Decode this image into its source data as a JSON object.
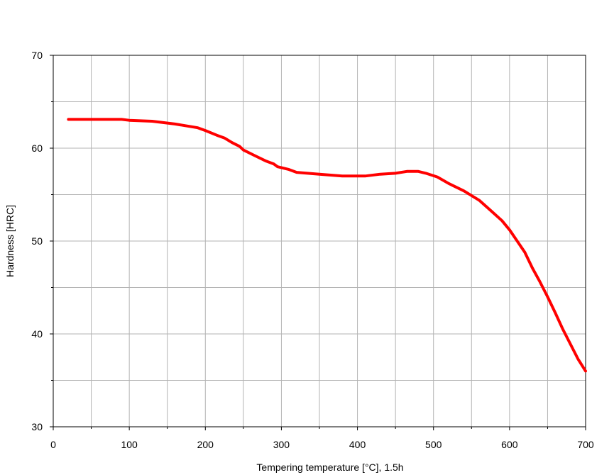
{
  "chart_data": {
    "type": "line",
    "title": "",
    "xlabel": "Tempering temperature [°C], 1.5h",
    "ylabel": "Hardness [HRC]",
    "xlim": [
      0,
      700
    ],
    "ylim": [
      30,
      70
    ],
    "x_ticks": [
      "0",
      "100",
      "200",
      "300",
      "400",
      "500",
      "600",
      "700"
    ],
    "y_ticks": [
      "30",
      "40",
      "50",
      "60",
      "70"
    ],
    "x_minor_step": 50,
    "y_minor_step": 5,
    "grid": true,
    "legend": "none",
    "series": [
      {
        "color": "#ff0000",
        "x": [
          20,
          50,
          90,
          100,
          130,
          160,
          190,
          200,
          215,
          225,
          235,
          245,
          250,
          265,
          280,
          290,
          295,
          310,
          320,
          350,
          380,
          410,
          430,
          450,
          465,
          480,
          490,
          505,
          520,
          540,
          560,
          575,
          590,
          600,
          610,
          620,
          630,
          640,
          650,
          660,
          670,
          680,
          690,
          700
        ],
        "y": [
          63.1,
          63.1,
          63.1,
          63.0,
          62.9,
          62.6,
          62.2,
          61.9,
          61.4,
          61.1,
          60.6,
          60.2,
          59.8,
          59.2,
          58.6,
          58.3,
          58.0,
          57.7,
          57.4,
          57.2,
          57.0,
          57.0,
          57.2,
          57.3,
          57.5,
          57.5,
          57.3,
          56.9,
          56.2,
          55.4,
          54.4,
          53.3,
          52.2,
          51.2,
          50.0,
          48.8,
          47.1,
          45.6,
          44.0,
          42.3,
          40.5,
          38.9,
          37.3,
          36.0
        ]
      }
    ]
  }
}
